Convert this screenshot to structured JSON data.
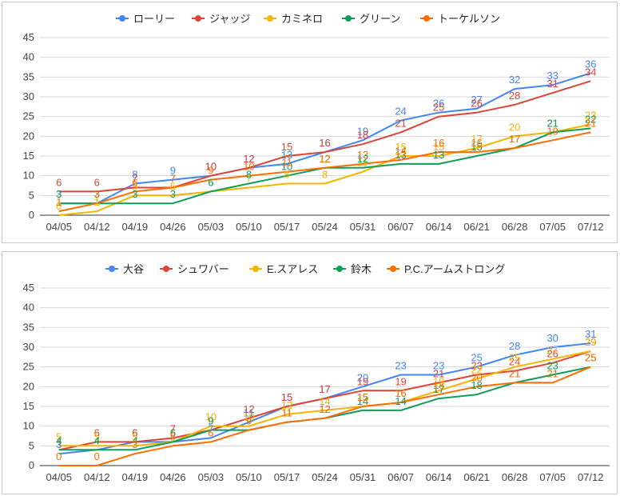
{
  "chart_data": [
    {
      "type": "line",
      "x": [
        "04/05",
        "04/12",
        "04/19",
        "04/26",
        "05/03",
        "05/10",
        "05/17",
        "05/24",
        "05/31",
        "06/07",
        "06/14",
        "06/21",
        "06/28",
        "07/05",
        "07/12"
      ],
      "ylim": [
        0,
        45
      ],
      "yticks": [
        0,
        5,
        10,
        15,
        20,
        25,
        30,
        35,
        40,
        45
      ],
      "grid": true,
      "legend": "top",
      "series": [
        {
          "name": "ローリー",
          "color": "#4285f4",
          "values": [
            3,
            3,
            8,
            9,
            10,
            12,
            13,
            16,
            19,
            24,
            26,
            27,
            32,
            33,
            36
          ]
        },
        {
          "name": "ジャッジ",
          "color": "#db4437",
          "values": [
            6,
            6,
            7,
            7,
            10,
            12,
            15,
            16,
            18,
            21,
            25,
            26,
            28,
            31,
            34
          ]
        },
        {
          "name": "カミネロ",
          "color": "#f4b400",
          "values": [
            0,
            1,
            5,
            5,
            6,
            7,
            8,
            8,
            11,
            15,
            15,
            17,
            20,
            21,
            23
          ]
        },
        {
          "name": "グリーン",
          "color": "#0f9d58",
          "values": [
            3,
            3,
            3,
            3,
            6,
            8,
            10,
            12,
            12,
            13,
            13,
            15,
            17,
            21,
            22
          ]
        },
        {
          "name": "トーケルソン",
          "color": "#ff6d01",
          "values": [
            1,
            3,
            6,
            7,
            9,
            10,
            11,
            12,
            13,
            14,
            16,
            16,
            17,
            19,
            21
          ]
        }
      ]
    },
    {
      "type": "line",
      "x": [
        "04/05",
        "04/12",
        "04/19",
        "04/26",
        "05/03",
        "05/10",
        "05/17",
        "05/24",
        "05/31",
        "06/07",
        "06/14",
        "06/21",
        "06/28",
        "07/05",
        "07/12"
      ],
      "ylim": [
        0,
        45
      ],
      "yticks": [
        0,
        5,
        10,
        15,
        20,
        25,
        30,
        35,
        40,
        45
      ],
      "grid": true,
      "legend": "top",
      "series": [
        {
          "name": "大谷",
          "color": "#4285f4",
          "values": [
            3,
            4,
            6,
            6,
            7,
            11,
            15,
            17,
            20,
            23,
            23,
            25,
            28,
            30,
            31
          ]
        },
        {
          "name": "シュワバー",
          "color": "#db4437",
          "values": [
            4,
            6,
            6,
            7,
            9,
            12,
            15,
            17,
            19,
            19,
            21,
            23,
            24,
            26,
            29
          ]
        },
        {
          "name": "E.スアレス",
          "color": "#f4b400",
          "values": [
            5,
            5,
            5,
            6,
            10,
            10,
            13,
            14,
            15,
            16,
            19,
            22,
            25,
            27,
            29
          ]
        },
        {
          "name": "鈴木",
          "color": "#0f9d58",
          "values": [
            4,
            4,
            4,
            6,
            9,
            9,
            11,
            12,
            14,
            14,
            17,
            18,
            21,
            23,
            25
          ]
        },
        {
          "name": "P.C.アームストロング",
          "color": "#ff6d01",
          "values": [
            0,
            0,
            3,
            5,
            6,
            9,
            11,
            12,
            15,
            16,
            18,
            20,
            21,
            21,
            25
          ]
        }
      ]
    }
  ]
}
